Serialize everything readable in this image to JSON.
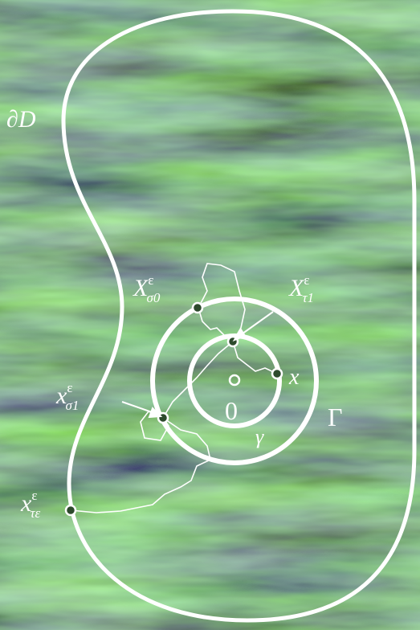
{
  "labels": {
    "boundary": "∂D",
    "x_sigma0": {
      "base": "X",
      "sup": "ε",
      "sub": "σ0"
    },
    "x_tau1": {
      "base": "X",
      "sup": "ε",
      "sub": "τ1"
    },
    "point_x": "x",
    "origin": "0",
    "outer_circle": "Γ",
    "inner_circle": "γ",
    "x_sigma1": {
      "base": "x",
      "sup": "ε",
      "sub": "σ1"
    },
    "x_tau_eps": {
      "base": "x",
      "sup": "ε",
      "sub": "τε"
    }
  }
}
